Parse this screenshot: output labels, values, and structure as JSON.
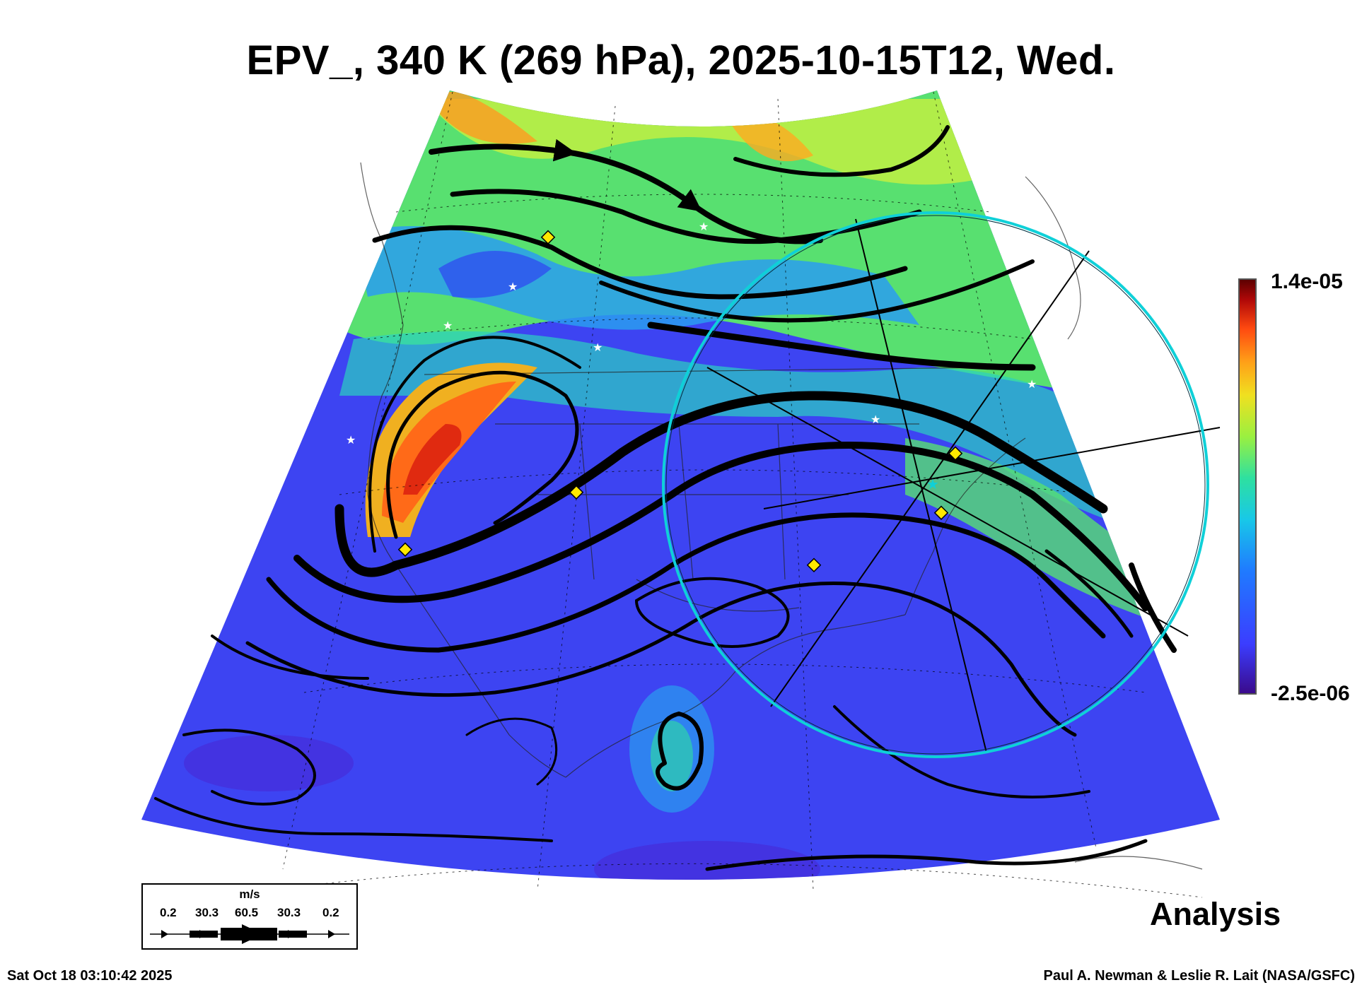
{
  "title": "EPV_, 340 K (269 hPa), 2025-10-15T12, Wed.",
  "colorbar": {
    "max_label": "1.4e-05",
    "min_label": "-2.5e-06",
    "colors": [
      "#3a0a8a",
      "#3b3dff",
      "#1f7cff",
      "#18b8f0",
      "#2ee0b8",
      "#7ef05a",
      "#d6f02a",
      "#ffb018",
      "#ff5a10",
      "#c81010",
      "#5a0000"
    ]
  },
  "wind_legend": {
    "unit": "m/s",
    "values": [
      "0.2",
      "30.3",
      "60.5",
      "30.3",
      "0.2"
    ]
  },
  "analysis_label": "Analysis",
  "timestamp": "Sat Oct 18 03:10:42 2025",
  "credit": "Paul A. Newman & Leslie R. Lait (NASA/GSFC)"
}
